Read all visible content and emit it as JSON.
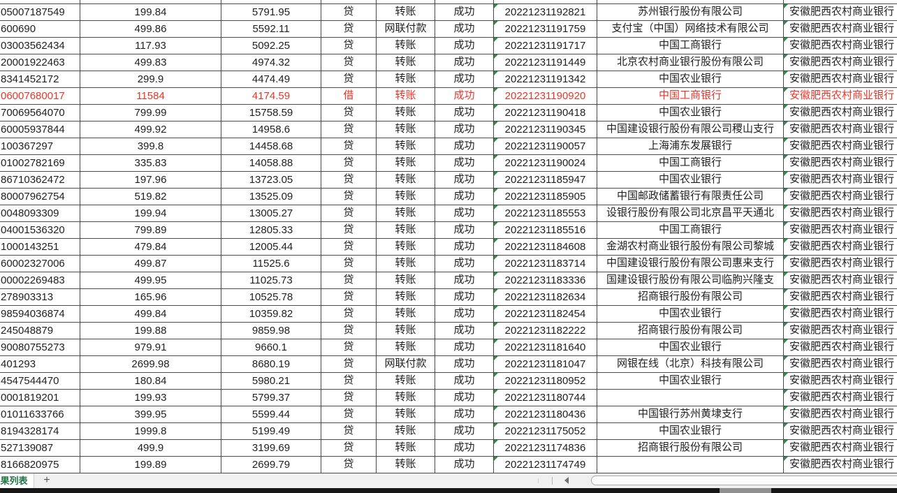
{
  "sheet": {
    "tab_label": "果列表",
    "add_sheet_label": "+"
  },
  "colors": {
    "red_text": "#e8372a",
    "normal_text": "#212121",
    "grid_line": "#4a4a4a",
    "error_triangle_green": "#2f8f46",
    "tab_green": "#217346"
  },
  "table": {
    "rows": [
      {
        "account": "05007187549",
        "amount": "199.84",
        "balance": "5791.95",
        "direction": "贷",
        "method": "转账",
        "status": "成功",
        "time": "20221231192821",
        "bank": "苏州银行股份有限公司",
        "own_bank": "安徽肥西农村商业银行",
        "red": false
      },
      {
        "account": "600690",
        "amount": "499.86",
        "balance": "5592.11",
        "direction": "贷",
        "method": "网联付款",
        "status": "成功",
        "time": "20221231191759",
        "bank": "支付宝（中国）网络技术有限公司",
        "own_bank": "安徽肥西农村商业银行",
        "red": false
      },
      {
        "account": "03003562434",
        "amount": "117.93",
        "balance": "5092.25",
        "direction": "贷",
        "method": "转账",
        "status": "成功",
        "time": "20221231191717",
        "bank": "中国工商银行",
        "own_bank": "安徽肥西农村商业银行",
        "red": false
      },
      {
        "account": "20001922463",
        "amount": "499.83",
        "balance": "4974.32",
        "direction": "贷",
        "method": "转账",
        "status": "成功",
        "time": "20221231191449",
        "bank": "北京农村商业银行股份有限公司",
        "own_bank": "安徽肥西农村商业银行",
        "red": false
      },
      {
        "account": "8341452172",
        "amount": "299.9",
        "balance": "4474.49",
        "direction": "贷",
        "method": "转账",
        "status": "成功",
        "time": "20221231191342",
        "bank": "中国农业银行",
        "own_bank": "安徽肥西农村商业银行",
        "red": false
      },
      {
        "account": "06007680017",
        "amount": "11584",
        "balance": "4174.59",
        "direction": "借",
        "method": "转账",
        "status": "成功",
        "time": "20221231190920",
        "bank": "中国工商银行",
        "own_bank": "安徽肥西农村商业银行",
        "red": true
      },
      {
        "account": "70069564070",
        "amount": "799.99",
        "balance": "15758.59",
        "direction": "贷",
        "method": "转账",
        "status": "成功",
        "time": "20221231190418",
        "bank": "中国农业银行",
        "own_bank": "安徽肥西农村商业银行",
        "red": false
      },
      {
        "account": "60005937844",
        "amount": "499.92",
        "balance": "14958.6",
        "direction": "贷",
        "method": "转账",
        "status": "成功",
        "time": "20221231190345",
        "bank": "中国建设银行股份有限公司稷山支行",
        "own_bank": "安徽肥西农村商业银行",
        "red": false
      },
      {
        "account": "100367297",
        "amount": "399.8",
        "balance": "14458.68",
        "direction": "贷",
        "method": "转账",
        "status": "成功",
        "time": "20221231190057",
        "bank": "上海浦东发展银行",
        "own_bank": "安徽肥西农村商业银行",
        "red": false
      },
      {
        "account": "01002782169",
        "amount": "335.83",
        "balance": "14058.88",
        "direction": "贷",
        "method": "转账",
        "status": "成功",
        "time": "20221231190024",
        "bank": "中国工商银行",
        "own_bank": "安徽肥西农村商业银行",
        "red": false
      },
      {
        "account": "86710362472",
        "amount": "197.96",
        "balance": "13723.05",
        "direction": "贷",
        "method": "转账",
        "status": "成功",
        "time": "20221231185947",
        "bank": "中国农业银行",
        "own_bank": "安徽肥西农村商业银行",
        "red": false
      },
      {
        "account": "80007962754",
        "amount": "519.82",
        "balance": "13525.09",
        "direction": "贷",
        "method": "转账",
        "status": "成功",
        "time": "20221231185905",
        "bank": "中国邮政储蓄银行有限责任公司",
        "own_bank": "安徽肥西农村商业银行",
        "red": false
      },
      {
        "account": "0048093309",
        "amount": "199.94",
        "balance": "13005.27",
        "direction": "贷",
        "method": "转账",
        "status": "成功",
        "time": "20221231185553",
        "bank": "设银行股份有限公司北京昌平天通北",
        "own_bank": "安徽肥西农村商业银行",
        "red": false
      },
      {
        "account": "04001536320",
        "amount": "799.89",
        "balance": "12805.33",
        "direction": "贷",
        "method": "转账",
        "status": "成功",
        "time": "20221231185516",
        "bank": "中国工商银行",
        "own_bank": "安徽肥西农村商业银行",
        "red": false
      },
      {
        "account": "1000143251",
        "amount": "479.84",
        "balance": "12005.44",
        "direction": "贷",
        "method": "转账",
        "status": "成功",
        "time": "20221231184608",
        "bank": "金湖农村商业银行股份有限公司黎城",
        "own_bank": "安徽肥西农村商业银行",
        "red": false
      },
      {
        "account": "60002327006",
        "amount": "499.87",
        "balance": "11525.6",
        "direction": "贷",
        "method": "转账",
        "status": "成功",
        "time": "20221231183714",
        "bank": "中国建设银行股份有限公司惠来支行",
        "own_bank": "安徽肥西农村商业银行",
        "red": false
      },
      {
        "account": "00002269483",
        "amount": "499.95",
        "balance": "11025.73",
        "direction": "贷",
        "method": "转账",
        "status": "成功",
        "time": "20221231183336",
        "bank": "国建设银行股份有限公司临朐兴隆支",
        "own_bank": "安徽肥西农村商业银行",
        "red": false
      },
      {
        "account": "278903313",
        "amount": "165.96",
        "balance": "10525.78",
        "direction": "贷",
        "method": "转账",
        "status": "成功",
        "time": "20221231182634",
        "bank": "招商银行股份有限公司",
        "own_bank": "安徽肥西农村商业银行",
        "red": false
      },
      {
        "account": "98594036874",
        "amount": "499.84",
        "balance": "10359.82",
        "direction": "贷",
        "method": "转账",
        "status": "成功",
        "time": "20221231182454",
        "bank": "中国农业银行",
        "own_bank": "安徽肥西农村商业银行",
        "red": false
      },
      {
        "account": "245048879",
        "amount": "199.88",
        "balance": "9859.98",
        "direction": "贷",
        "method": "转账",
        "status": "成功",
        "time": "20221231182222",
        "bank": "招商银行股份有限公司",
        "own_bank": "安徽肥西农村商业银行",
        "red": false
      },
      {
        "account": "90080755273",
        "amount": "979.91",
        "balance": "9660.1",
        "direction": "贷",
        "method": "转账",
        "status": "成功",
        "time": "20221231181640",
        "bank": "中国农业银行",
        "own_bank": "安徽肥西农村商业银行",
        "red": false
      },
      {
        "account": "401293",
        "amount": "2699.98",
        "balance": "8680.19",
        "direction": "贷",
        "method": "网联付款",
        "status": "成功",
        "time": "20221231181047",
        "bank": "网银在线（北京）科技有限公司",
        "own_bank": "安徽肥西农村商业银行",
        "red": false
      },
      {
        "account": "4547544470",
        "amount": "180.84",
        "balance": "5980.21",
        "direction": "贷",
        "method": "转账",
        "status": "成功",
        "time": "20221231180952",
        "bank": "中国农业银行",
        "own_bank": "安徽肥西农村商业银行",
        "red": false
      },
      {
        "account": "0001819201",
        "amount": "199.93",
        "balance": "5799.37",
        "direction": "贷",
        "method": "转账",
        "status": "成功",
        "time": "20221231180744",
        "bank": "",
        "own_bank": "安徽肥西农村商业银行",
        "red": false
      },
      {
        "account": "01011633766",
        "amount": "399.95",
        "balance": "5599.44",
        "direction": "贷",
        "method": "转账",
        "status": "成功",
        "time": "20221231180436",
        "bank": "中国银行苏州黄埭支行",
        "own_bank": "安徽肥西农村商业银行",
        "red": false
      },
      {
        "account": "8194328174",
        "amount": "1999.8",
        "balance": "5199.49",
        "direction": "贷",
        "method": "转账",
        "status": "成功",
        "time": "20221231175052",
        "bank": "中国农业银行",
        "own_bank": "安徽肥西农村商业银行",
        "red": false
      },
      {
        "account": "527139087",
        "amount": "499.9",
        "balance": "3199.69",
        "direction": "贷",
        "method": "转账",
        "status": "成功",
        "time": "20221231174836",
        "bank": "招商银行股份有限公司",
        "own_bank": "安徽肥西农村商业银行",
        "red": false
      },
      {
        "account": "8166820975",
        "amount": "199.89",
        "balance": "2699.79",
        "direction": "贷",
        "method": "转账",
        "status": "成功",
        "time": "20221231174749",
        "bank": "",
        "own_bank": "安徽肥西农村商业银行",
        "red": false
      }
    ]
  }
}
